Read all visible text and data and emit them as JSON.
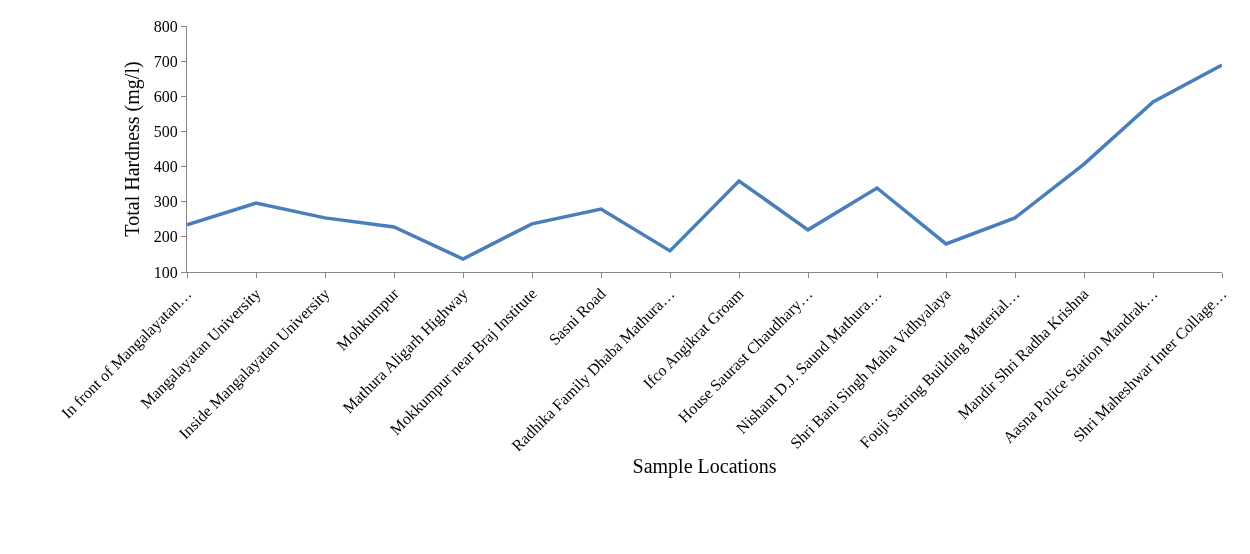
{
  "chart_data": {
    "type": "line",
    "xlabel": "Sample Locations",
    "ylabel": "Total Hardness (mg/l)",
    "categories": [
      "In front of Mangalayatan…",
      "Mangalayatan University",
      "Inside Mangalayatan University",
      "Mohkumpur",
      "Mathura Aligarh Highway",
      "Mokkumpur near Braj Institute",
      "Sasni Road",
      "Radhika Family Dhaba Mathura…",
      "Ifco Angikrat Groam",
      "House Saurast Chaudhary…",
      "Nishant D.J. Saund Mathura…",
      "Shri Bani Singh Maha Vidhyalaya",
      "Fouji Satring Building Material…",
      "Mandir Shri Radha Krishna",
      "Aasna Police Station Mandrak…",
      "Shri Maheshwar Inter Collage…"
    ],
    "series": [
      {
        "color": "#4a7ebb",
        "values": [
          234,
          296,
          254,
          228,
          137,
          237,
          279,
          160,
          359,
          220,
          339,
          180,
          254,
          407,
          584,
          689
        ]
      }
    ],
    "ylim": [
      100,
      800
    ],
    "yticks": [
      100,
      200,
      300,
      400,
      500,
      600,
      700,
      800
    ],
    "marker": "none",
    "line_style": "solid"
  }
}
